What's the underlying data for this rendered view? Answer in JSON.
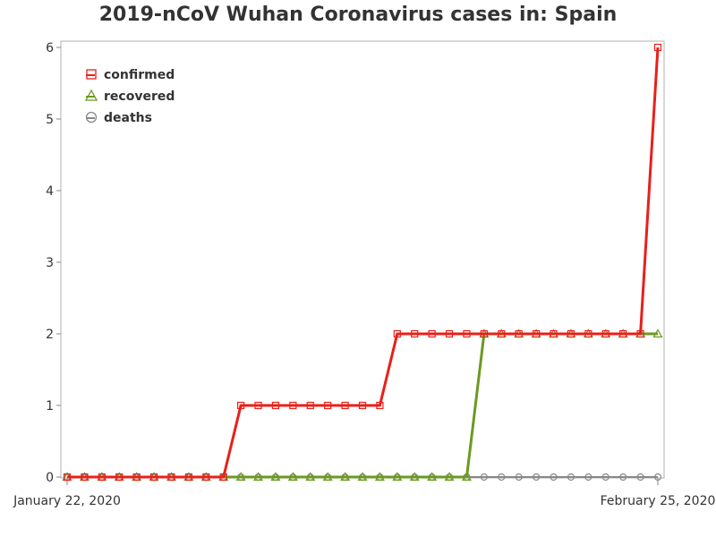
{
  "chart_data": {
    "type": "line",
    "title": "2019-nCoV Wuhan Coronavirus cases in: Spain",
    "xlabel": "",
    "ylabel": "",
    "x_tick_labels": [
      "January 22, 2020",
      "February 25, 2020"
    ],
    "x_range": [
      "2020-01-22",
      "2020-02-25"
    ],
    "ylim": [
      0,
      6
    ],
    "y_ticks": [
      0,
      1,
      2,
      3,
      4,
      5,
      6
    ],
    "grid": false,
    "legend_position": "top-left",
    "x": [
      "2020-01-22",
      "2020-01-23",
      "2020-01-24",
      "2020-01-25",
      "2020-01-26",
      "2020-01-27",
      "2020-01-28",
      "2020-01-29",
      "2020-01-30",
      "2020-01-31",
      "2020-02-01",
      "2020-02-02",
      "2020-02-03",
      "2020-02-04",
      "2020-02-05",
      "2020-02-06",
      "2020-02-07",
      "2020-02-08",
      "2020-02-09",
      "2020-02-10",
      "2020-02-11",
      "2020-02-12",
      "2020-02-13",
      "2020-02-14",
      "2020-02-15",
      "2020-02-16",
      "2020-02-17",
      "2020-02-18",
      "2020-02-19",
      "2020-02-20",
      "2020-02-21",
      "2020-02-22",
      "2020-02-23",
      "2020-02-24",
      "2020-02-25"
    ],
    "series": [
      {
        "name": "confirmed",
        "color": "#e8201a",
        "marker": "square",
        "values": [
          0,
          0,
          0,
          0,
          0,
          0,
          0,
          0,
          0,
          0,
          1,
          1,
          1,
          1,
          1,
          1,
          1,
          1,
          1,
          2,
          2,
          2,
          2,
          2,
          2,
          2,
          2,
          2,
          2,
          2,
          2,
          2,
          2,
          2,
          6
        ]
      },
      {
        "name": "recovered",
        "color": "#6a9a1f",
        "marker": "triangle",
        "values": [
          0,
          0,
          0,
          0,
          0,
          0,
          0,
          0,
          0,
          0,
          0,
          0,
          0,
          0,
          0,
          0,
          0,
          0,
          0,
          0,
          0,
          0,
          0,
          0,
          2,
          2,
          2,
          2,
          2,
          2,
          2,
          2,
          2,
          2,
          2
        ]
      },
      {
        "name": "deaths",
        "color": "#888888",
        "marker": "circle",
        "values": [
          0,
          0,
          0,
          0,
          0,
          0,
          0,
          0,
          0,
          0,
          0,
          0,
          0,
          0,
          0,
          0,
          0,
          0,
          0,
          0,
          0,
          0,
          0,
          0,
          0,
          0,
          0,
          0,
          0,
          0,
          0,
          0,
          0,
          0,
          0
        ]
      }
    ]
  }
}
